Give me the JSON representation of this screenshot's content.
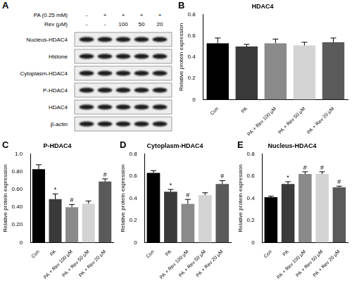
{
  "blot": {
    "panel": "A",
    "conditions": [
      {
        "label": "PA (0.25 mM)",
        "lanes": [
          "-",
          "+",
          "+",
          "+",
          "+"
        ]
      },
      {
        "label": "Rev (μM)",
        "lanes": [
          "-",
          "-",
          "100",
          "50",
          "20"
        ]
      }
    ],
    "bands": [
      "Nucleus-HDAC4",
      "Histone",
      "Cytoplasm-HDAC4",
      "P-HDAC4",
      "HDAC4",
      "β-actin"
    ]
  },
  "chart_data": [
    {
      "type": "bar",
      "panel": "B",
      "title": "HDAC4",
      "y_label": "Relative protein expression",
      "categories": [
        "Con",
        "PA",
        "PA + Rev 100 μM",
        "PA + Rev 50 μM",
        "PA + Rev 20 μM"
      ],
      "values": [
        0.53,
        0.5,
        0.53,
        0.51,
        0.54
      ],
      "errors": [
        0.05,
        0.02,
        0.04,
        0.03,
        0.04
      ],
      "colors": [
        "#000000",
        "#3a3a3a",
        "#8a8a8a",
        "#d4d4d4",
        "#5a5a5a"
      ],
      "ylim": [
        0,
        0.8
      ],
      "yticks": [
        0,
        0.2,
        0.4,
        0.6,
        0.8
      ],
      "grid": false
    },
    {
      "type": "bar",
      "panel": "C",
      "title": "P-HDAC4",
      "y_label": "Relative protein expression",
      "categories": [
        "Con",
        "PA",
        "PA + Rev 100 μM",
        "PA + Rev 50 μM",
        "PA + Rev 20 μM"
      ],
      "values": [
        0.83,
        0.49,
        0.4,
        0.44,
        0.69
      ],
      "errors": [
        0.05,
        0.06,
        0.03,
        0.03,
        0.03
      ],
      "annotations": [
        null,
        "*",
        "#",
        null,
        "#"
      ],
      "colors": [
        "#000000",
        "#3a3a3a",
        "#8a8a8a",
        "#d4d4d4",
        "#5a5a5a"
      ],
      "ylim": [
        0,
        1.0
      ],
      "yticks": [
        0,
        {
          "value": 0.2,
          "label": "0.20"
        },
        {
          "value": 0.4,
          "label": "0.40"
        },
        {
          "value": 0.6,
          "label": "0.60"
        },
        {
          "value": 0.8,
          "label": "0.80"
        },
        {
          "value": 1.0,
          "label": "1.0"
        }
      ],
      "grid": false
    },
    {
      "type": "bar",
      "panel": "D",
      "title": "Cytoplasm-HDAC4",
      "y_label": "Relative protein expression",
      "categories": [
        "Con",
        "PA",
        "PA + Rev 100 μM",
        "PA + Rev 50 μM",
        "PA + Rev 20 μM"
      ],
      "values": [
        0.63,
        0.46,
        0.35,
        0.43,
        0.53
      ],
      "errors": [
        0.02,
        0.02,
        0.04,
        0.02,
        0.03
      ],
      "annotations": [
        null,
        "*",
        "#",
        null,
        "#"
      ],
      "colors": [
        "#000000",
        "#3a3a3a",
        "#8a8a8a",
        "#d4d4d4",
        "#5a5a5a"
      ],
      "ylim": [
        0,
        0.8
      ],
      "yticks": [
        0,
        0.2,
        0.4,
        0.6,
        0.8
      ],
      "grid": false
    },
    {
      "type": "bar",
      "panel": "E",
      "title": "Nucleus-HDAC4",
      "y_label": "Relative protein expression",
      "categories": [
        "Con",
        "PA",
        "PA + Rev 100 μM",
        "PA + Rev 50 μM",
        "PA + Rev 20 μM"
      ],
      "values": [
        0.41,
        0.53,
        0.62,
        0.62,
        0.5
      ],
      "errors": [
        0.01,
        0.02,
        0.02,
        0.02,
        0.01
      ],
      "annotations": [
        null,
        "*",
        "#",
        "#",
        "#"
      ],
      "colors": [
        "#000000",
        "#3a3a3a",
        "#8a8a8a",
        "#d4d4d4",
        "#5a5a5a"
      ],
      "ylim": [
        0,
        0.8
      ],
      "yticks": [
        0,
        0.2,
        0.4,
        0.6,
        0.8
      ],
      "grid": false
    }
  ]
}
